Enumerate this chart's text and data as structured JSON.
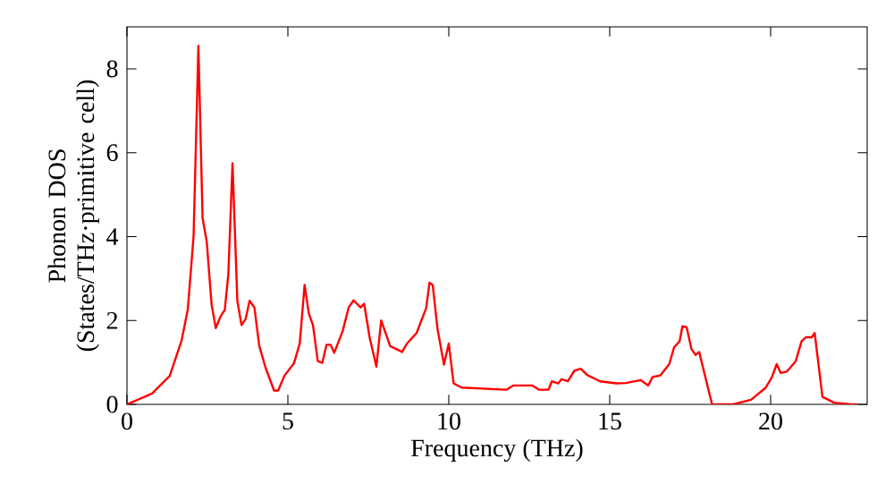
{
  "chart_data": {
    "type": "line",
    "xlabel": "Frequency (THz)",
    "ylabel": "Phonon DOS (States/THz·primitive cell)",
    "xlim": [
      0,
      23
    ],
    "ylim": [
      0,
      9
    ],
    "xticks": [
      0,
      5,
      10,
      15,
      20
    ],
    "yticks": [
      0,
      2,
      4,
      6,
      8
    ],
    "marker": "none",
    "line_style": "solid",
    "series": [
      {
        "color": "#ff0000",
        "x": [
          0,
          0.78,
          1.33,
          1.7,
          1.89,
          2.07,
          2.22,
          2.35,
          2.48,
          2.63,
          2.76,
          2.91,
          3.04,
          3.15,
          3.28,
          3.43,
          3.56,
          3.69,
          3.81,
          3.96,
          4.11,
          4.3,
          4.57,
          4.7,
          4.89,
          5.19,
          5.37,
          5.52,
          5.65,
          5.78,
          5.93,
          6.07,
          6.2,
          6.33,
          6.44,
          6.7,
          6.89,
          7.04,
          7.26,
          7.37,
          7.54,
          7.75,
          7.9,
          8.18,
          8.55,
          8.7,
          9.0,
          9.3,
          9.4,
          9.5,
          9.65,
          9.85,
          10.0,
          10.15,
          10.4,
          11.8,
          12.0,
          12.6,
          12.8,
          13.1,
          13.2,
          13.4,
          13.5,
          13.7,
          13.9,
          14.1,
          14.3,
          14.7,
          15.2,
          15.5,
          15.96,
          16.2,
          16.33,
          16.57,
          16.85,
          17.0,
          17.17,
          17.26,
          17.39,
          17.54,
          17.67,
          17.78,
          17.94,
          18.18,
          18.83,
          19.39,
          19.85,
          20.04,
          20.19,
          20.31,
          20.5,
          20.78,
          20.96,
          21.09,
          21.28,
          21.37,
          21.61,
          21.98,
          22.5,
          22.7
        ],
        "values": [
          0,
          0.26,
          0.68,
          1.53,
          2.26,
          4.0,
          8.55,
          4.44,
          3.87,
          2.38,
          1.82,
          2.1,
          2.25,
          3.1,
          5.75,
          2.47,
          1.89,
          2.04,
          2.47,
          2.31,
          1.4,
          0.89,
          0.33,
          0.33,
          0.68,
          0.98,
          1.46,
          2.85,
          2.17,
          1.89,
          1.03,
          0.99,
          1.42,
          1.42,
          1.23,
          1.74,
          2.31,
          2.48,
          2.31,
          2.4,
          1.6,
          0.9,
          2.0,
          1.39,
          1.25,
          1.45,
          1.7,
          2.3,
          2.9,
          2.85,
          1.8,
          0.95,
          1.45,
          0.5,
          0.4,
          0.35,
          0.45,
          0.45,
          0.35,
          0.35,
          0.55,
          0.5,
          0.6,
          0.55,
          0.8,
          0.85,
          0.7,
          0.55,
          0.5,
          0.51,
          0.58,
          0.45,
          0.65,
          0.69,
          0.96,
          1.36,
          1.5,
          1.86,
          1.84,
          1.32,
          1.18,
          1.25,
          0.75,
          0,
          0,
          0.11,
          0.4,
          0.65,
          0.96,
          0.75,
          0.78,
          1.03,
          1.5,
          1.6,
          1.6,
          1.7,
          0.18,
          0.04,
          0,
          0
        ]
      }
    ]
  }
}
